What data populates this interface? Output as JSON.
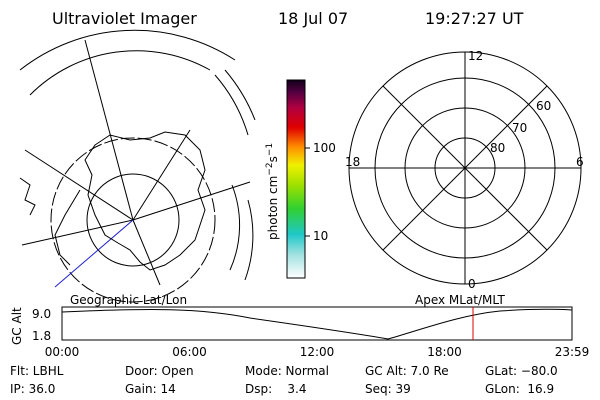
{
  "header": {
    "instrument": "Ultraviolet Imager",
    "date": "18 Jul 07",
    "time": "19:27:27 UT"
  },
  "colorbar": {
    "label": {
      "unit": "photon cm",
      "exp1": "−2",
      "unit2": "s",
      "exp2": "−1"
    },
    "ticks": [
      "100",
      "10"
    ]
  },
  "polar_grid": {
    "mlt_labels": [
      "12",
      "18",
      "6",
      "0"
    ],
    "lat_labels": [
      "60",
      "70",
      "80"
    ]
  },
  "timeline": {
    "left_title": "Geographic Lat/Lon",
    "right_title": "Apex MLat/MLT",
    "y_label": "GC Alt",
    "y_ticks": [
      "9.0",
      "1.8"
    ],
    "x_ticks": [
      "00:00",
      "06:00",
      "12:00",
      "18:00",
      "23:59"
    ]
  },
  "status": {
    "rows": [
      [
        "Flt: LBHL",
        "Door: Open",
        "Mode: Normal",
        "GC Alt: 7.0 Re",
        "GLat: −80.0"
      ],
      [
        "IP: 36.0",
        "Gain: 14",
        "Dsp:    3.4",
        "Seq: 39",
        "GLon:  16.9"
      ]
    ]
  }
}
